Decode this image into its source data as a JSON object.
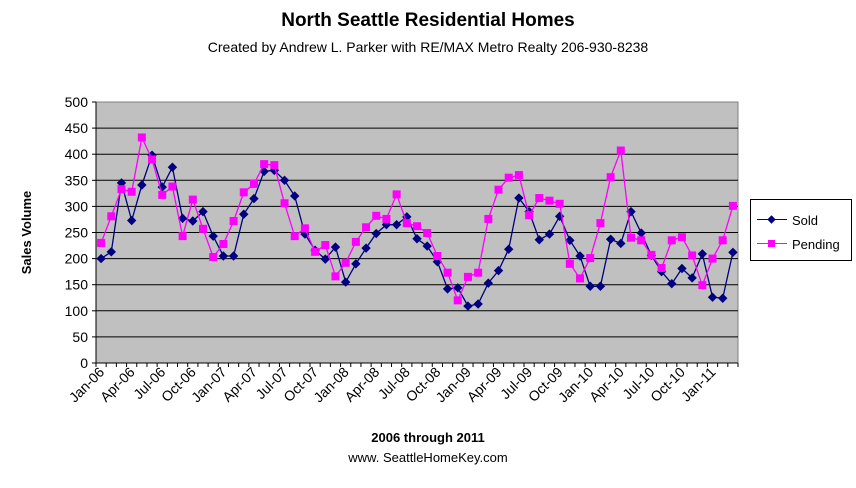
{
  "chart_data": {
    "type": "line",
    "title": "North Seattle Residential  Homes",
    "subtitle": "Created by Andrew L. Parker with RE/MAX Metro Realty 206-930-8238",
    "xlabel": "2006 through 2011",
    "xlabel2": "www. SeattleHomeKey.com",
    "ylabel": "Sales Volume",
    "ylim": [
      0,
      500
    ],
    "yticks": [
      0,
      50,
      100,
      150,
      200,
      250,
      300,
      350,
      400,
      450,
      500
    ],
    "grid": true,
    "legend_position": "right",
    "colors": {
      "plot_bg": "#c0c0c0",
      "Sold": "#000080",
      "Pending": "#ff00ff"
    },
    "tick_labels": [
      "Jan-06",
      "Apr-06",
      "Jul-06",
      "Oct-06",
      "Jan-07",
      "Apr-07",
      "Jul-07",
      "Oct-07",
      "Jan-08",
      "Apr-08",
      "Jul-08",
      "Oct-08",
      "Jan-09",
      "Apr-09",
      "Jul-09",
      "Oct-09",
      "Jan-10",
      "Apr-10",
      "Jul-10",
      "Oct-10",
      "Jan-11"
    ],
    "x": [
      "Jan-06",
      "Feb-06",
      "Mar-06",
      "Apr-06",
      "May-06",
      "Jun-06",
      "Jul-06",
      "Aug-06",
      "Sep-06",
      "Oct-06",
      "Nov-06",
      "Dec-06",
      "Jan-07",
      "Feb-07",
      "Mar-07",
      "Apr-07",
      "May-07",
      "Jun-07",
      "Jul-07",
      "Aug-07",
      "Sep-07",
      "Oct-07",
      "Nov-07",
      "Dec-07",
      "Jan-08",
      "Feb-08",
      "Mar-08",
      "Apr-08",
      "May-08",
      "Jun-08",
      "Jul-08",
      "Aug-08",
      "Sep-08",
      "Oct-08",
      "Nov-08",
      "Dec-08",
      "Jan-09",
      "Feb-09",
      "Mar-09",
      "Apr-09",
      "May-09",
      "Jun-09",
      "Jul-09",
      "Aug-09",
      "Sep-09",
      "Oct-09",
      "Nov-09",
      "Dec-09",
      "Jan-10",
      "Feb-10",
      "Mar-10",
      "Apr-10",
      "May-10",
      "Jun-10",
      "Jul-10",
      "Aug-10",
      "Sep-10",
      "Oct-10",
      "Nov-10",
      "Dec-10",
      "Jan-11",
      "Feb-11",
      "Mar-11"
    ],
    "series": [
      {
        "name": "Sold",
        "values": [
          200,
          213,
          345,
          273,
          341,
          398,
          337,
          375,
          277,
          272,
          290,
          243,
          205,
          205,
          285,
          315,
          367,
          369,
          350,
          320,
          247,
          216,
          199,
          222,
          155,
          190,
          220,
          248,
          265,
          265,
          280,
          238,
          224,
          194,
          142,
          144,
          109,
          113,
          153,
          177,
          218,
          316,
          290,
          236,
          247,
          281,
          235,
          205,
          147,
          147,
          237,
          229,
          290,
          249,
          206,
          175,
          152,
          181,
          163,
          209,
          126,
          124,
          212
        ]
      },
      {
        "name": "Pending",
        "values": [
          230,
          281,
          333,
          328,
          432,
          390,
          322,
          338,
          243,
          313,
          257,
          203,
          228,
          272,
          327,
          343,
          381,
          379,
          306,
          243,
          258,
          213,
          226,
          166,
          192,
          232,
          260,
          282,
          276,
          323,
          268,
          262,
          249,
          205,
          173,
          120,
          165,
          173,
          276,
          332,
          355,
          360,
          283,
          316,
          311,
          305,
          190,
          162,
          201,
          268,
          356,
          407,
          240,
          235,
          207,
          182,
          235,
          241,
          206,
          149,
          200,
          235,
          301
        ]
      }
    ]
  }
}
